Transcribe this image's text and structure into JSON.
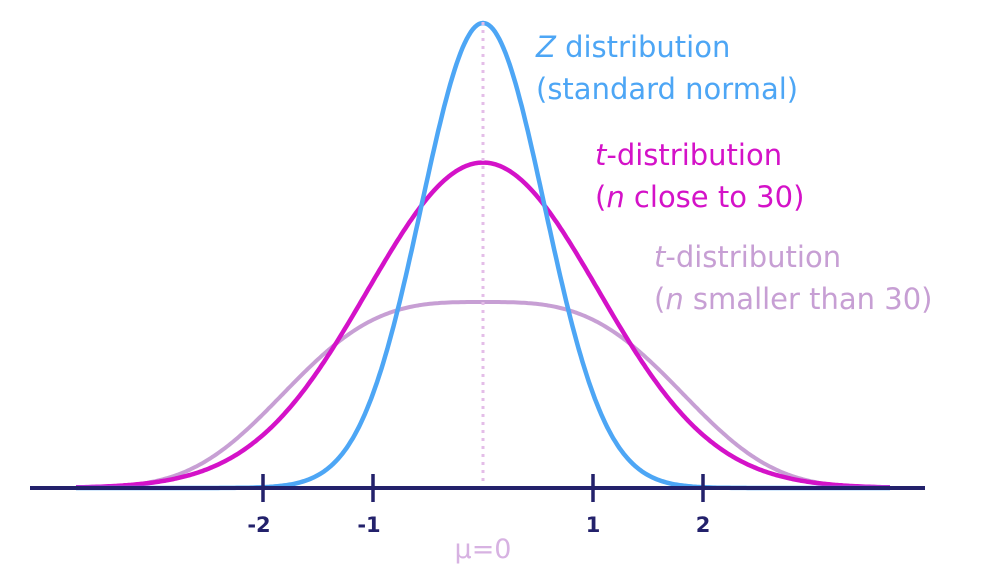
{
  "chart_data": {
    "type": "line",
    "xlim": [
      -3.7,
      3.7
    ],
    "ticks": [
      {
        "value": -2,
        "label": "-2"
      },
      {
        "value": -1,
        "label": "-1"
      },
      {
        "value": 1,
        "label": "1"
      },
      {
        "value": 2,
        "label": "2"
      }
    ],
    "center_label": {
      "symbol": "μ",
      "text": "=0",
      "value": 0
    },
    "series": [
      {
        "key": "z",
        "color": "#4da6f5",
        "peak": 1.0,
        "shape": "gaussian",
        "spread": 0.56,
        "opacity": 1
      },
      {
        "key": "t_close_30",
        "color": "#d412c8",
        "peak": 0.7,
        "shape": "gaussian",
        "spread": 1.05,
        "opacity": 1
      },
      {
        "key": "t_small",
        "color": "#c79fd4",
        "peak": 0.4,
        "shape": "flat",
        "spread": 2.05,
        "opacity": 1
      }
    ],
    "annotations": {
      "z": {
        "line1_italic": "Z",
        "line1_rest": " distribution",
        "line2": "(standard normal)"
      },
      "t_close_30": {
        "line1_italic": "t",
        "line1_rest": "-distribution",
        "line2_open": "(",
        "line2_italic": "n",
        "line2_rest": " close to 30)"
      },
      "t_small": {
        "line1_italic": "t",
        "line1_rest": "-distribution",
        "line2_open": "(",
        "line2_italic": "n",
        "line2_rest": " smaller than 30)"
      }
    },
    "colors": {
      "axis": "#23216b",
      "center_line": "#e4bde8"
    },
    "grid": false,
    "legend": "none"
  }
}
